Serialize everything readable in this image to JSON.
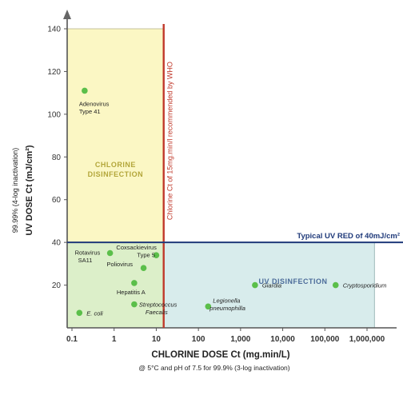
{
  "chart_data": {
    "type": "scatter",
    "x_scale": "log",
    "xlim": [
      0.1,
      1000000
    ],
    "ylim": [
      0,
      140
    ],
    "x_ticks": [
      "0.1",
      "1",
      "10",
      "100",
      "1,000",
      "10,000",
      "100,000",
      "1,000,000"
    ],
    "y_ticks": [
      "20",
      "40",
      "60",
      "80",
      "100",
      "120",
      "140"
    ],
    "xlabel": "CHLORINE DOSE Ct (mg.min/L)",
    "xlabel_note": "@ 5°C and pH of 7.5 for 99.9% (3-log inactivation)",
    "ylabel": "UV DOSE Ct (mJ/cm²)",
    "ylabel_note": "99.99% (4-log inactivation)",
    "regions": {
      "chlorine": {
        "label_line1": "CHLORINE",
        "label_line2": "DISINFECTION",
        "x_max": 15,
        "y_max": 140,
        "color": "#fbf7c4"
      },
      "uv": {
        "label": "UV DISINFECTION",
        "x_min": 15,
        "x_max": 1500000,
        "y_max": 40,
        "color": "#d8ecec"
      },
      "both": {
        "x_max": 15,
        "y_max": 40,
        "color": "#dcefc9"
      }
    },
    "reference_lines": {
      "chlorine": {
        "x": 15,
        "label": "Chlorine Ct of 15mg.min/l recommended by WHO",
        "color": "#c0392b"
      },
      "uv": {
        "y": 40,
        "label": "Typical UV RED of 40mJ/cm²",
        "color": "#1f3a7a"
      }
    },
    "points": [
      {
        "name_lines": [
          "Adenovirus",
          "Type 41"
        ],
        "x": 0.2,
        "y": 111,
        "italic": false
      },
      {
        "name_lines": [
          "Rotavirus",
          "SA11"
        ],
        "x": 0.8,
        "y": 35,
        "italic": false
      },
      {
        "name_lines": [
          "Coxsackievirus",
          "Type 5"
        ],
        "x": 10,
        "y": 34,
        "italic": false
      },
      {
        "name_lines": [
          "Poliovirus"
        ],
        "x": 5,
        "y": 28,
        "italic": false
      },
      {
        "name_lines": [
          "Hepatitis A"
        ],
        "x": 3,
        "y": 21,
        "italic": false
      },
      {
        "name_lines": [
          "E. coli"
        ],
        "x": 0.15,
        "y": 7,
        "italic": true
      },
      {
        "name_lines": [
          "Streptococcus",
          "Faecalis"
        ],
        "x": 3,
        "y": 11,
        "italic": true
      },
      {
        "name_lines": [
          "Legionella",
          "pneumophilla"
        ],
        "x": 170,
        "y": 10,
        "italic": true
      },
      {
        "name_lines": [
          "Giardia"
        ],
        "x": 2200,
        "y": 20,
        "italic": true
      },
      {
        "name_lines": [
          "Cryptosporidium"
        ],
        "x": 180000,
        "y": 20,
        "italic": true
      }
    ],
    "point_color": "#5bbf4a"
  }
}
